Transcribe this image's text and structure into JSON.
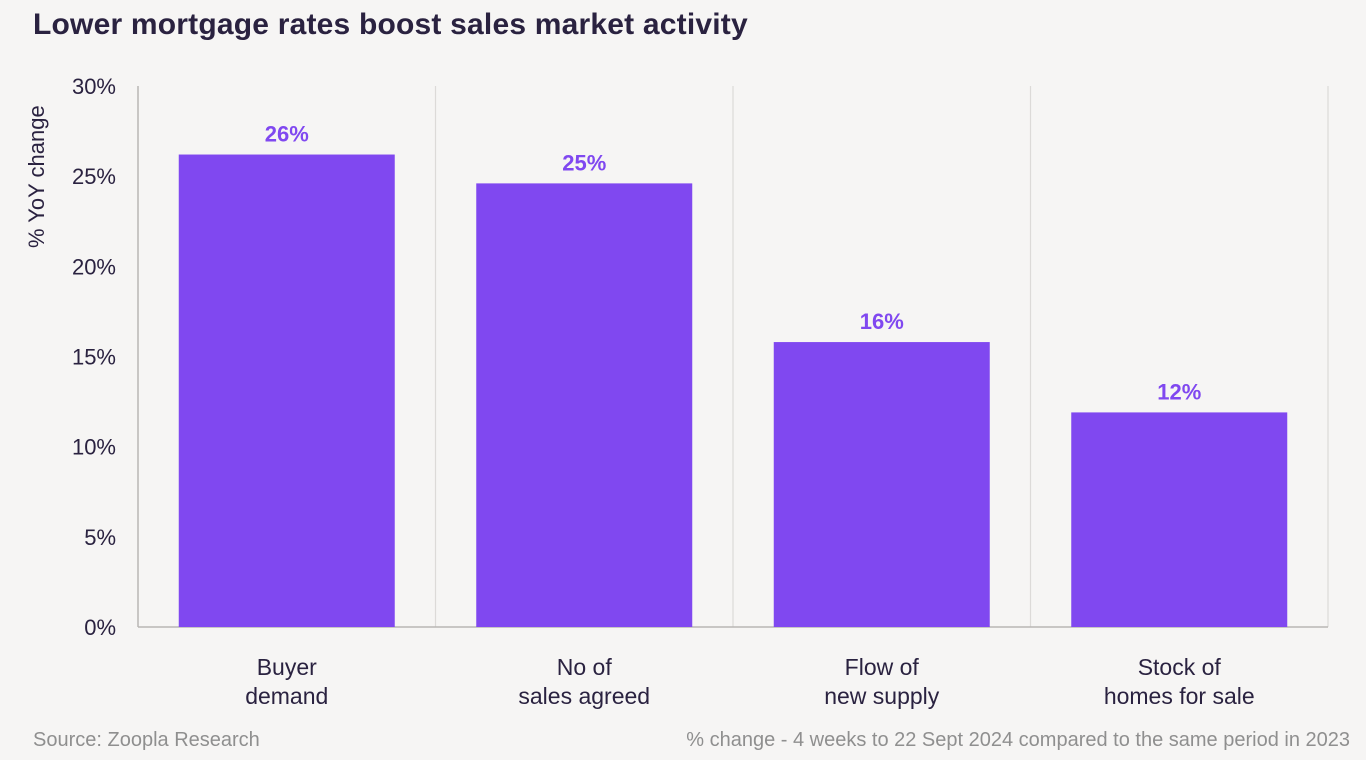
{
  "chart_data": {
    "type": "bar",
    "title": "Lower mortgage rates boost sales market activity",
    "xlabel": "",
    "ylabel": "% YoY change",
    "ylim": [
      0,
      30
    ],
    "yticks": [
      0,
      5,
      10,
      15,
      20,
      25,
      30
    ],
    "ytick_labels": [
      "0%",
      "5%",
      "10%",
      "15%",
      "20%",
      "25%",
      "30%"
    ],
    "categories": [
      [
        "Buyer",
        "demand"
      ],
      [
        "No of",
        "sales agreed"
      ],
      [
        "Flow of",
        "new supply"
      ],
      [
        "Stock of",
        "homes for sale"
      ]
    ],
    "values": [
      26.2,
      24.6,
      15.8,
      11.9
    ],
    "data_labels": [
      "26%",
      "25%",
      "16%",
      "12%"
    ],
    "bar_color": "#8048f0",
    "grid": "vertical separators",
    "legend": "none"
  },
  "footer": {
    "source": "Source: Zoopla Research",
    "note": "% change - 4 weeks to 22 Sept 2024 compared to the same period in 2023"
  }
}
